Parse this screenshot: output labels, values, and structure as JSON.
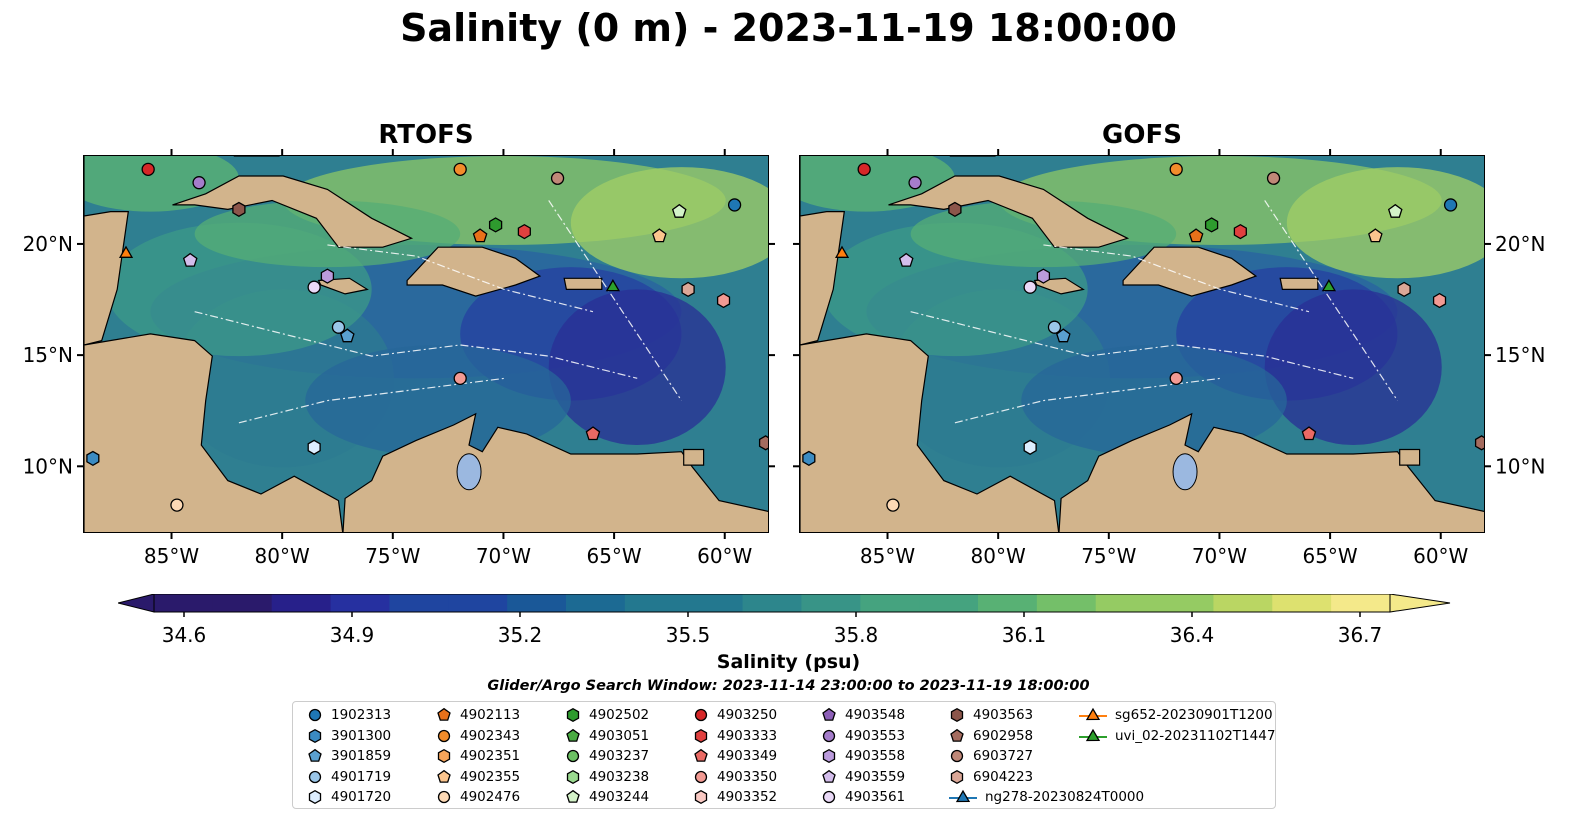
{
  "title": "Salinity (0 m) - 2023-11-19 18:00:00",
  "panels": [
    {
      "id": "rtofs",
      "title": "RTOFS"
    },
    {
      "id": "gofs",
      "title": "GOFS"
    }
  ],
  "axes": {
    "lon_ticks": [
      "85°W",
      "80°W",
      "75°W",
      "70°W",
      "65°W",
      "60°W"
    ],
    "lat_ticks": [
      "20°N",
      "15°N",
      "10°N"
    ],
    "lon_range": [
      -89,
      -58
    ],
    "lat_range": [
      7,
      24
    ]
  },
  "colorbar": {
    "label": "Salinity (psu)",
    "ticks": [
      "34.6",
      "34.9",
      "35.2",
      "35.5",
      "35.8",
      "36.1",
      "36.4",
      "36.7"
    ],
    "range": [
      34.6,
      36.7
    ],
    "extend": "both",
    "colormap": "haline",
    "colors": [
      "#2a1a6b",
      "#27208a",
      "#2630a0",
      "#1f45a0",
      "#1a5898",
      "#1c6a93",
      "#23788f",
      "#2d868c",
      "#389487",
      "#45a37f",
      "#58b174",
      "#74bf69",
      "#95cb63",
      "#bad663",
      "#dde16f",
      "#f4e98a"
    ]
  },
  "search_window": "Glider/Argo Search Window: 2023-11-14 23:00:00 to 2023-11-19 18:00:00",
  "legend": [
    {
      "label": "1902313",
      "marker": "circle",
      "color": "#1f77b4"
    },
    {
      "label": "3901300",
      "marker": "hexagon",
      "color": "#3b8bc2"
    },
    {
      "label": "3901859",
      "marker": "pentagon",
      "color": "#5aa0d0"
    },
    {
      "label": "4901719",
      "marker": "circle",
      "color": "#9ac6e8"
    },
    {
      "label": "4901720",
      "marker": "hexagon",
      "color": "#ddeeff"
    },
    {
      "label": "4902113",
      "marker": "pentagon",
      "color": "#e8711a"
    },
    {
      "label": "4902343",
      "marker": "circle",
      "color": "#f28c2b"
    },
    {
      "label": "4902351",
      "marker": "hexagon",
      "color": "#f7a55a"
    },
    {
      "label": "4902355",
      "marker": "pentagon",
      "color": "#fbc58e"
    },
    {
      "label": "4902476",
      "marker": "circle",
      "color": "#fdd9b5"
    },
    {
      "label": "4902502",
      "marker": "hexagon",
      "color": "#2e9b2e"
    },
    {
      "label": "4903051",
      "marker": "pentagon",
      "color": "#4aab42"
    },
    {
      "label": "4903237",
      "marker": "circle",
      "color": "#6cc163"
    },
    {
      "label": "4903238",
      "marker": "hexagon",
      "color": "#9ad98f"
    },
    {
      "label": "4903244",
      "marker": "pentagon",
      "color": "#d3f2c8"
    },
    {
      "label": "4903250",
      "marker": "circle",
      "color": "#d62728"
    },
    {
      "label": "4903333",
      "marker": "hexagon",
      "color": "#e0403f"
    },
    {
      "label": "4903349",
      "marker": "pentagon",
      "color": "#ea6a64"
    },
    {
      "label": "4903350",
      "marker": "circle",
      "color": "#f29a93"
    },
    {
      "label": "4903352",
      "marker": "hexagon",
      "color": "#f9c9c3"
    },
    {
      "label": "4903548",
      "marker": "pentagon",
      "color": "#8d5fb8"
    },
    {
      "label": "4903553",
      "marker": "circle",
      "color": "#a57dcb"
    },
    {
      "label": "4903558",
      "marker": "hexagon",
      "color": "#bb9bdc"
    },
    {
      "label": "4903559",
      "marker": "pentagon",
      "color": "#d3bdeb"
    },
    {
      "label": "4903561",
      "marker": "circle",
      "color": "#ead9f7"
    },
    {
      "label": "4903563",
      "marker": "hexagon",
      "color": "#8c564b"
    },
    {
      "label": "6902958",
      "marker": "pentagon",
      "color": "#a56c5f"
    },
    {
      "label": "6903727",
      "marker": "circle",
      "color": "#c08878"
    },
    {
      "label": "6904223",
      "marker": "hexagon",
      "color": "#dba797"
    },
    {
      "label": "ng278-20230824T0000",
      "marker": "triangle-line",
      "color": "#1f77b4"
    },
    {
      "label": "sg652-20230901T1200",
      "marker": "triangle-line",
      "color": "#ff7f0e"
    },
    {
      "label": "uvi_02-20231102T1447",
      "marker": "triangle-line",
      "color": "#2ca02c"
    }
  ],
  "observations": [
    {
      "lon": -86.1,
      "lat": 23.4,
      "marker": "circle",
      "color": "#d62728"
    },
    {
      "lon": -83.8,
      "lat": 22.8,
      "marker": "circle",
      "color": "#a57dcb"
    },
    {
      "lon": -82.0,
      "lat": 21.6,
      "marker": "hexagon",
      "color": "#8c564b"
    },
    {
      "lon": -72.0,
      "lat": 23.4,
      "marker": "circle",
      "color": "#f28c2b"
    },
    {
      "lon": -67.6,
      "lat": 23.0,
      "marker": "circle",
      "color": "#c08878"
    },
    {
      "lon": -59.6,
      "lat": 21.8,
      "marker": "circle",
      "color": "#1f77b4"
    },
    {
      "lon": -62.1,
      "lat": 21.5,
      "marker": "pentagon",
      "color": "#d3f2c8"
    },
    {
      "lon": -63.0,
      "lat": 20.4,
      "marker": "pentagon",
      "color": "#fbc58e"
    },
    {
      "lon": -70.4,
      "lat": 20.9,
      "marker": "hexagon",
      "color": "#2e9b2e"
    },
    {
      "lon": -71.1,
      "lat": 20.4,
      "marker": "pentagon",
      "color": "#e8711a"
    },
    {
      "lon": -69.1,
      "lat": 20.6,
      "marker": "hexagon",
      "color": "#e0403f"
    },
    {
      "lon": -87.1,
      "lat": 19.6,
      "marker": "triangle",
      "color": "#ff7f0e"
    },
    {
      "lon": -84.2,
      "lat": 19.3,
      "marker": "pentagon",
      "color": "#d3bdeb"
    },
    {
      "lon": -78.0,
      "lat": 18.6,
      "marker": "hexagon",
      "color": "#bb9bdc"
    },
    {
      "lon": -78.6,
      "lat": 18.1,
      "marker": "circle",
      "color": "#ead9f7"
    },
    {
      "lon": -65.1,
      "lat": 18.1,
      "marker": "triangle",
      "color": "#2ca02c"
    },
    {
      "lon": -61.7,
      "lat": 18.0,
      "marker": "hexagon",
      "color": "#dba797"
    },
    {
      "lon": -60.1,
      "lat": 17.5,
      "marker": "hexagon",
      "color": "#f29a93"
    },
    {
      "lon": -77.5,
      "lat": 16.3,
      "marker": "circle",
      "color": "#9ac6e8"
    },
    {
      "lon": -77.1,
      "lat": 15.9,
      "marker": "pentagon",
      "color": "#5aa0d0"
    },
    {
      "lon": -72.0,
      "lat": 14.0,
      "marker": "circle",
      "color": "#f29a93"
    },
    {
      "lon": -78.6,
      "lat": 10.9,
      "marker": "hexagon",
      "color": "#ddeeff"
    },
    {
      "lon": -66.0,
      "lat": 11.5,
      "marker": "pentagon",
      "color": "#ea6a64"
    },
    {
      "lon": -58.2,
      "lat": 11.1,
      "marker": "hexagon",
      "color": "#a56c5f"
    },
    {
      "lon": -88.6,
      "lat": 10.4,
      "marker": "hexagon",
      "color": "#3b8bc2"
    },
    {
      "lon": -84.8,
      "lat": 8.3,
      "marker": "circle",
      "color": "#fdd9b5"
    }
  ]
}
